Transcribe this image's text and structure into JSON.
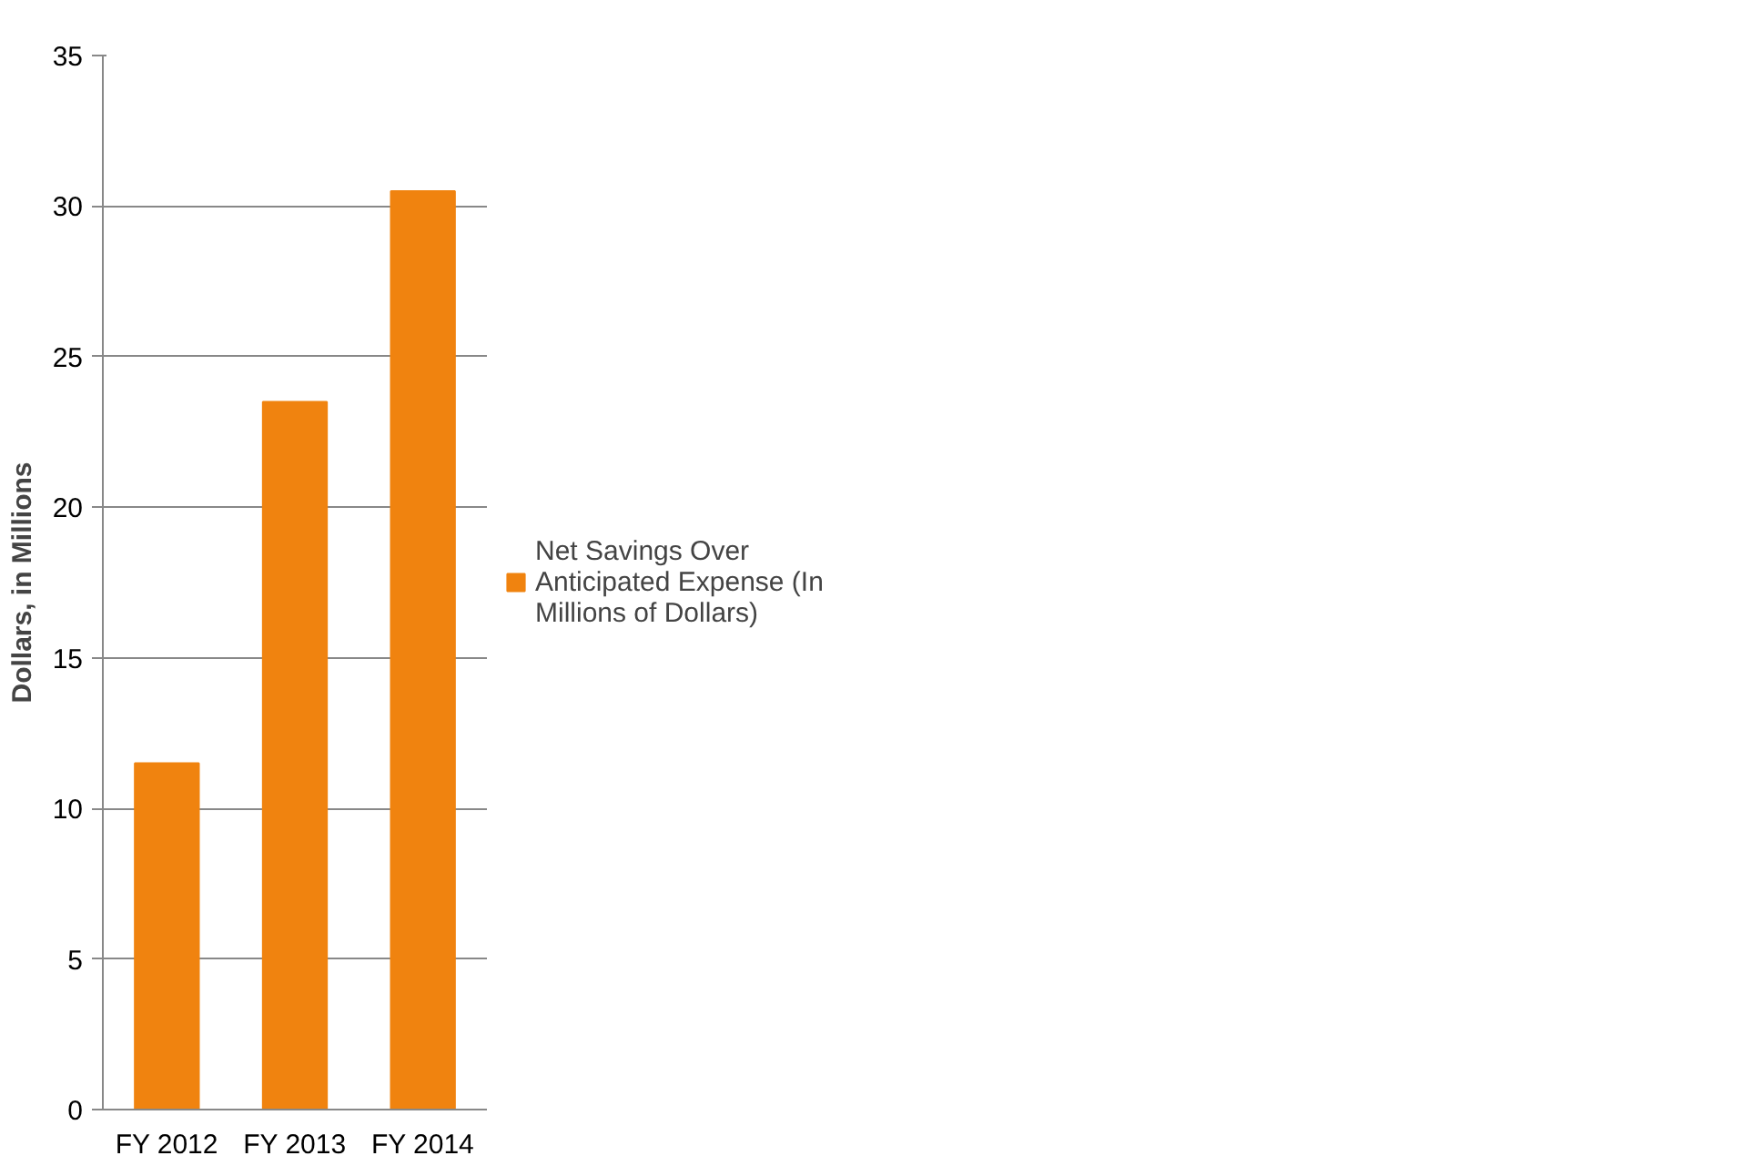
{
  "chart_data": {
    "type": "bar",
    "ylabel": "Dollars, in Millions",
    "categories": [
      "FY 2012",
      "FY 2013",
      "FY 2014"
    ],
    "series": [
      {
        "name": "Net Savings Over Anticipated Expense (In Millions of Dollars)",
        "color": "#f0830f",
        "values": [
          11.5,
          23.5,
          30.5
        ]
      }
    ],
    "ylim": [
      0,
      35
    ],
    "yticks": [
      0,
      5,
      10,
      15,
      20,
      25,
      30,
      35
    ],
    "grid": "y",
    "legend": "right"
  }
}
